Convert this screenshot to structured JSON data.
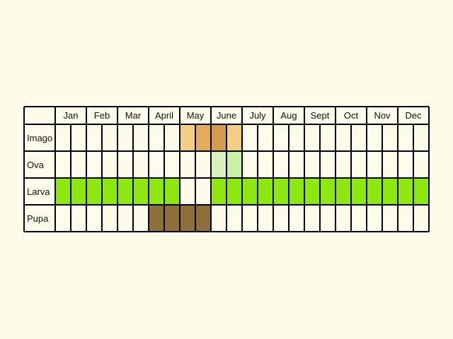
{
  "months": [
    "Jan",
    "Feb",
    "Mar",
    "April",
    "May",
    "June",
    "July",
    "Aug",
    "Sept",
    "Oct",
    "Nov",
    "Dec"
  ],
  "stages": [
    {
      "name": "Imago"
    },
    {
      "name": "Ova"
    },
    {
      "name": "Larva"
    },
    {
      "name": "Pupa"
    }
  ],
  "chart_data": {
    "type": "table",
    "title": "",
    "periods_per_month": 2,
    "colors": {
      "background": "#fdfbe9",
      "cell": "#fdfbe9",
      "grid": "#000000",
      "imago_light": "#f3cf86",
      "imago_mid": "#e4ab5b",
      "imago_dark": "#d49b4f",
      "ova": "#c9f0a6",
      "ova_light": "#d8f2bd",
      "larva": "#8ee80f",
      "pupa": "#8b6e3a"
    },
    "rows": [
      {
        "stage": "Imago",
        "fills": [
          {
            "period": 8,
            "color": "imago_light"
          },
          {
            "period": 9,
            "color": "imago_mid"
          },
          {
            "period": 10,
            "color": "imago_dark"
          },
          {
            "period": 11,
            "color": "imago_light"
          }
        ]
      },
      {
        "stage": "Ova",
        "fills": [
          {
            "period": 10,
            "color": "ova_light"
          },
          {
            "period": 11,
            "color": "ova"
          }
        ]
      },
      {
        "stage": "Larva",
        "fills": [
          {
            "period": 0,
            "color": "larva"
          },
          {
            "period": 1,
            "color": "larva"
          },
          {
            "period": 2,
            "color": "larva"
          },
          {
            "period": 3,
            "color": "larva"
          },
          {
            "period": 4,
            "color": "larva"
          },
          {
            "period": 5,
            "color": "larva"
          },
          {
            "period": 6,
            "color": "larva"
          },
          {
            "period": 7,
            "color": "larva"
          },
          {
            "period": 10,
            "color": "larva"
          },
          {
            "period": 11,
            "color": "larva"
          },
          {
            "period": 12,
            "color": "larva"
          },
          {
            "period": 13,
            "color": "larva"
          },
          {
            "period": 14,
            "color": "larva"
          },
          {
            "period": 15,
            "color": "larva"
          },
          {
            "period": 16,
            "color": "larva"
          },
          {
            "period": 17,
            "color": "larva"
          },
          {
            "period": 18,
            "color": "larva"
          },
          {
            "period": 19,
            "color": "larva"
          },
          {
            "period": 20,
            "color": "larva"
          },
          {
            "period": 21,
            "color": "larva"
          },
          {
            "period": 22,
            "color": "larva"
          },
          {
            "period": 23,
            "color": "larva"
          }
        ]
      },
      {
        "stage": "Pupa",
        "fills": [
          {
            "period": 6,
            "color": "pupa"
          },
          {
            "period": 7,
            "color": "pupa"
          },
          {
            "period": 8,
            "color": "pupa"
          },
          {
            "period": 9,
            "color": "pupa"
          }
        ]
      }
    ]
  }
}
